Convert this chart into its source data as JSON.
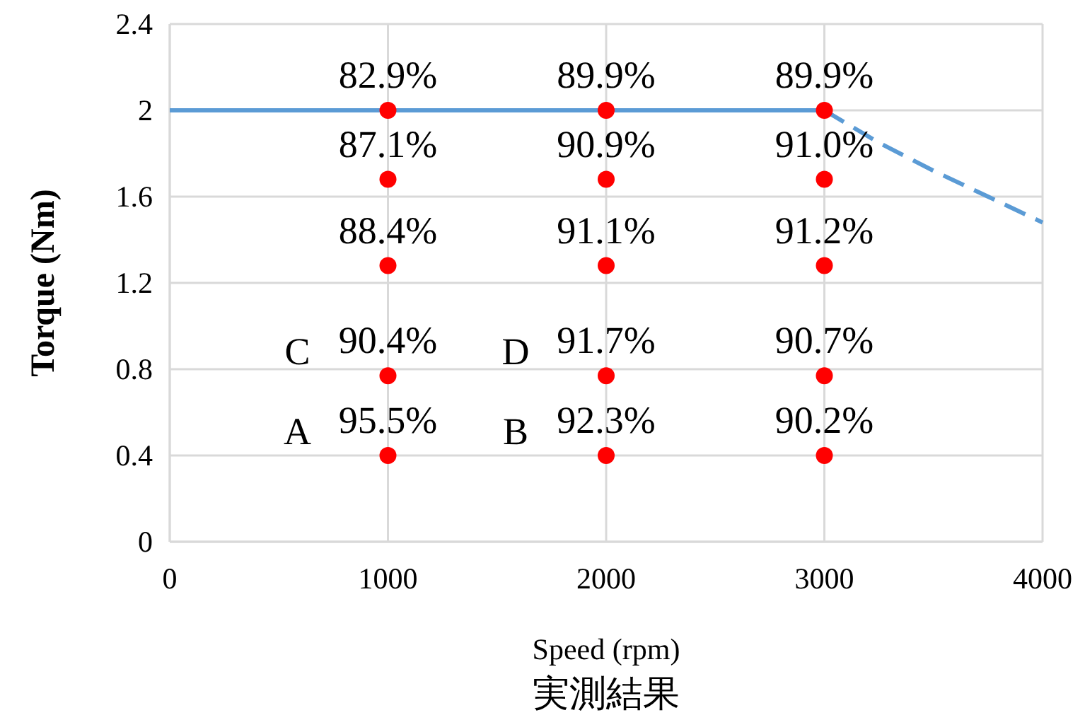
{
  "chart_data": {
    "type": "scatter",
    "xlabel": "Speed (rpm)",
    "ylabel": "Torque (Nm)",
    "xlim": [
      0,
      4000
    ],
    "xticks": [
      0,
      1000,
      2000,
      3000,
      4000
    ],
    "ylim": [
      0,
      2.4
    ],
    "yticks": [
      0,
      0.4,
      0.8,
      1.2,
      1.6,
      2,
      2.4
    ],
    "grid": true,
    "series": [
      {
        "type": "line",
        "color": "#5b9bd5",
        "line_style": "solid",
        "marker": "none",
        "x": [
          0,
          3000
        ],
        "values": [
          2,
          2
        ]
      },
      {
        "type": "line",
        "color": "#5b9bd5",
        "line_style": "dashed",
        "marker": "none",
        "x": [
          3000,
          3250,
          3500,
          3750,
          4000
        ],
        "values": [
          2,
          1.85,
          1.72,
          1.6,
          1.48
        ]
      },
      {
        "color": "#ff0000",
        "marker": "circle",
        "x": [
          1000,
          2000,
          3000,
          1000,
          2000,
          3000,
          1000,
          2000,
          3000,
          1000,
          2000,
          3000,
          1000,
          2000,
          3000
        ],
        "values": [
          2,
          2,
          2,
          1.68,
          1.68,
          1.68,
          1.28,
          1.28,
          1.28,
          0.77,
          0.77,
          0.77,
          0.4,
          0.4,
          0.4
        ]
      }
    ],
    "annotations": [
      {
        "text": "A",
        "x": 1000,
        "y": 0.4
      },
      {
        "text": "B",
        "x": 2000,
        "y": 0.4
      },
      {
        "text": "C",
        "x": 1000,
        "y": 0.77
      },
      {
        "text": "D",
        "x": 2000,
        "y": 0.77
      },
      {
        "text": "82.9%",
        "x": 1000,
        "y": 2
      },
      {
        "text": "89.9%",
        "x": 2000,
        "y": 2
      },
      {
        "text": "89.9%",
        "x": 3000,
        "y": 2
      },
      {
        "text": "87.1%",
        "x": 1000,
        "y": 1.68
      },
      {
        "text": "90.9%",
        "x": 2000,
        "y": 1.68
      },
      {
        "text": "91.0%",
        "x": 3000,
        "y": 1.68
      },
      {
        "text": "88.4%",
        "x": 1000,
        "y": 1.28
      },
      {
        "text": "91.1%",
        "x": 2000,
        "y": 1.28
      },
      {
        "text": "91.2%",
        "x": 3000,
        "y": 1.28
      },
      {
        "text": "90.4%",
        "x": 1000,
        "y": 0.77
      },
      {
        "text": "91.7%",
        "x": 2000,
        "y": 0.77
      },
      {
        "text": "90.7%",
        "x": 3000,
        "y": 0.77
      },
      {
        "text": "95.5%",
        "x": 1000,
        "y": 0.4
      },
      {
        "text": "92.3%",
        "x": 2000,
        "y": 0.4
      },
      {
        "text": "90.2%",
        "x": 3000,
        "y": 0.4
      },
      "実測結果"
    ]
  }
}
